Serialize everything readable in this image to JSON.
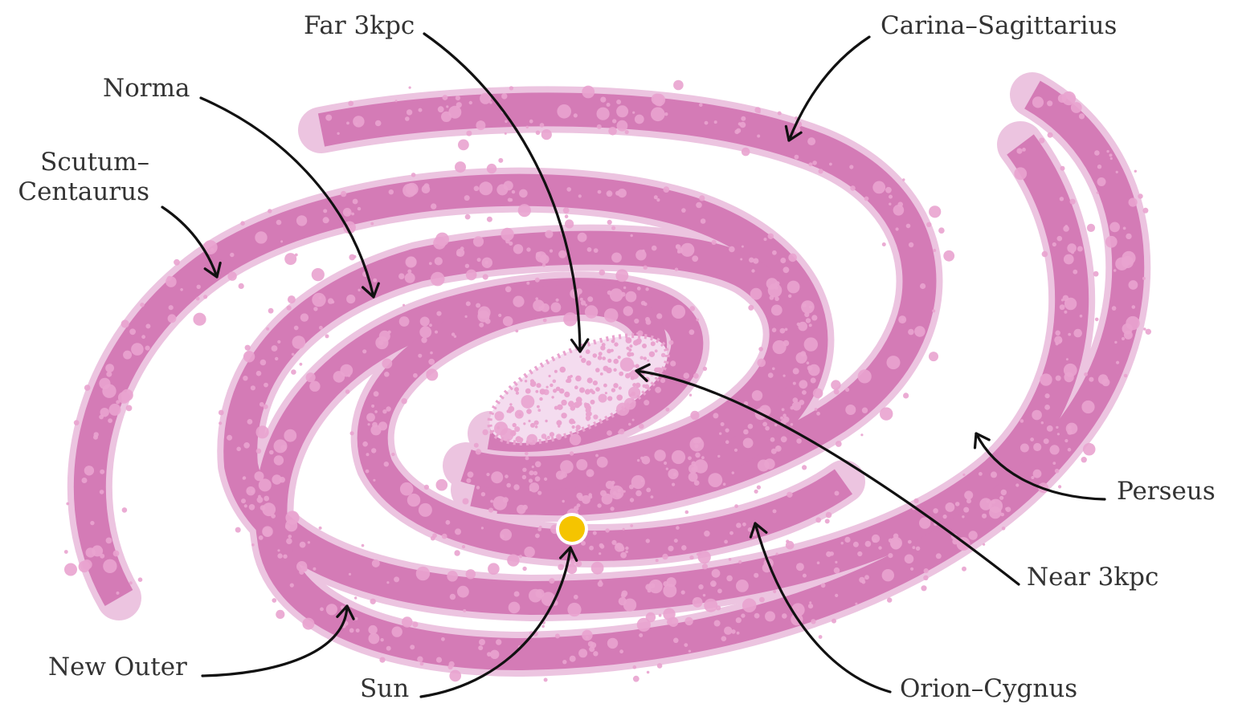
{
  "diagram": {
    "colors": {
      "arm": "#d47bb6",
      "arm_halo": "#ecc4e0",
      "dots": "#e9a3cf",
      "core": "#f4dcef",
      "sun": "#f5c400",
      "arrow": "#111111",
      "text": "#333333"
    },
    "labels": {
      "far3kpc": "Far 3kpc",
      "carina": "Carina–Sagittarius",
      "norma": "Norma",
      "scutum_line1": "Scutum–",
      "scutum_line2": "Centaurus",
      "perseus": "Perseus",
      "near3kpc": "Near 3kpc",
      "new_outer": "New Outer",
      "sun": "Sun",
      "orion": "Orion–Cygnus"
    },
    "icons": [
      "sun-marker-icon"
    ]
  }
}
